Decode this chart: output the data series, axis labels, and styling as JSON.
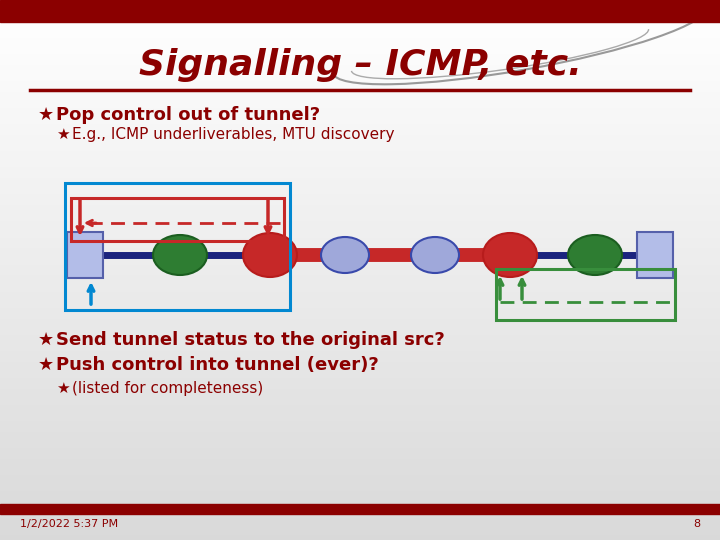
{
  "title": "Signalling – ICMP, etc.",
  "title_color": "#8B0000",
  "title_fontsize": 26,
  "bg_top_color": "#FFFFFF",
  "bg_bottom_color": "#C8C8C8",
  "bg_color": "#D8D8D8",
  "header_bar_color": "#8B0000",
  "footer_bar_color": "#8B0000",
  "bullet_char": "★",
  "bullet_color": "#8B0000",
  "line1": "Pop control out of tunnel?",
  "line2": "E.g., ICMP underliverables, MTU discovery",
  "line3": "Send tunnel status to the original src?",
  "line4": "Push control into tunnel (ever)?",
  "line5": "(listed for completeness)",
  "text_color": "#8B0000",
  "footer_text": "1/2/2022 5:37 PM",
  "footer_page": "8",
  "divider_color": "#8B0000",
  "node_dark_blue": "#1a237e",
  "node_green": "#2e7d32",
  "node_red": "#c62828",
  "node_blue_light": "#9fa8da",
  "node_box_fill": "#b3bde8",
  "line_blue": "#0288d1",
  "line_red": "#c62828",
  "line_green": "#388e3c",
  "line_dark": "#1a237e",
  "dashed_red": "#c62828",
  "dashed_green": "#388e3c"
}
